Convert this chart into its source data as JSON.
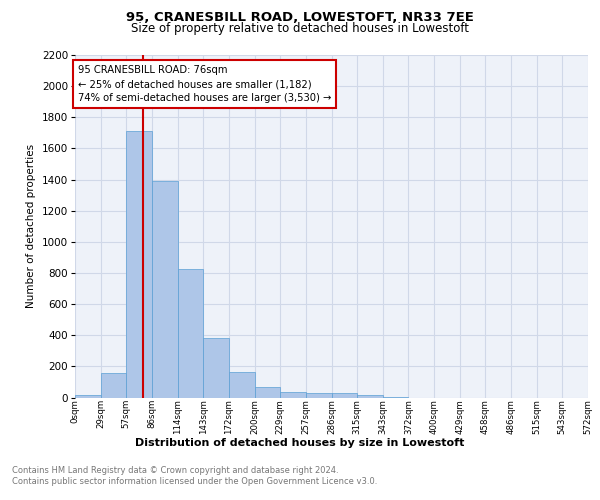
{
  "title": "95, CRANESBILL ROAD, LOWESTOFT, NR33 7EE",
  "subtitle": "Size of property relative to detached houses in Lowestoft",
  "xlabel": "Distribution of detached houses by size in Lowestoft",
  "ylabel": "Number of detached properties",
  "bin_labels": [
    "0sqm",
    "29sqm",
    "57sqm",
    "86sqm",
    "114sqm",
    "143sqm",
    "172sqm",
    "200sqm",
    "229sqm",
    "257sqm",
    "286sqm",
    "315sqm",
    "343sqm",
    "372sqm",
    "400sqm",
    "429sqm",
    "458sqm",
    "486sqm",
    "515sqm",
    "543sqm",
    "572sqm"
  ],
  "bar_values": [
    15,
    160,
    1710,
    1390,
    825,
    380,
    165,
    65,
    35,
    30,
    30,
    15,
    5,
    0,
    0,
    0,
    0,
    0,
    0,
    0
  ],
  "bar_color": "#aec6e8",
  "bar_edge_color": "#5a9fd4",
  "property_line_x": 76,
  "property_line_color": "#cc0000",
  "annotation_line1": "95 CRANESBILL ROAD: 76sqm",
  "annotation_line2": "← 25% of detached houses are smaller (1,182)",
  "annotation_line3": "74% of semi-detached houses are larger (3,530) →",
  "annotation_box_color": "#cc0000",
  "ylim": [
    0,
    2200
  ],
  "yticks": [
    0,
    200,
    400,
    600,
    800,
    1000,
    1200,
    1400,
    1600,
    1800,
    2000,
    2200
  ],
  "footer_line1": "Contains HM Land Registry data © Crown copyright and database right 2024.",
  "footer_line2": "Contains public sector information licensed under the Open Government Licence v3.0.",
  "grid_color": "#d0d8e8",
  "background_color": "#eef2f9"
}
